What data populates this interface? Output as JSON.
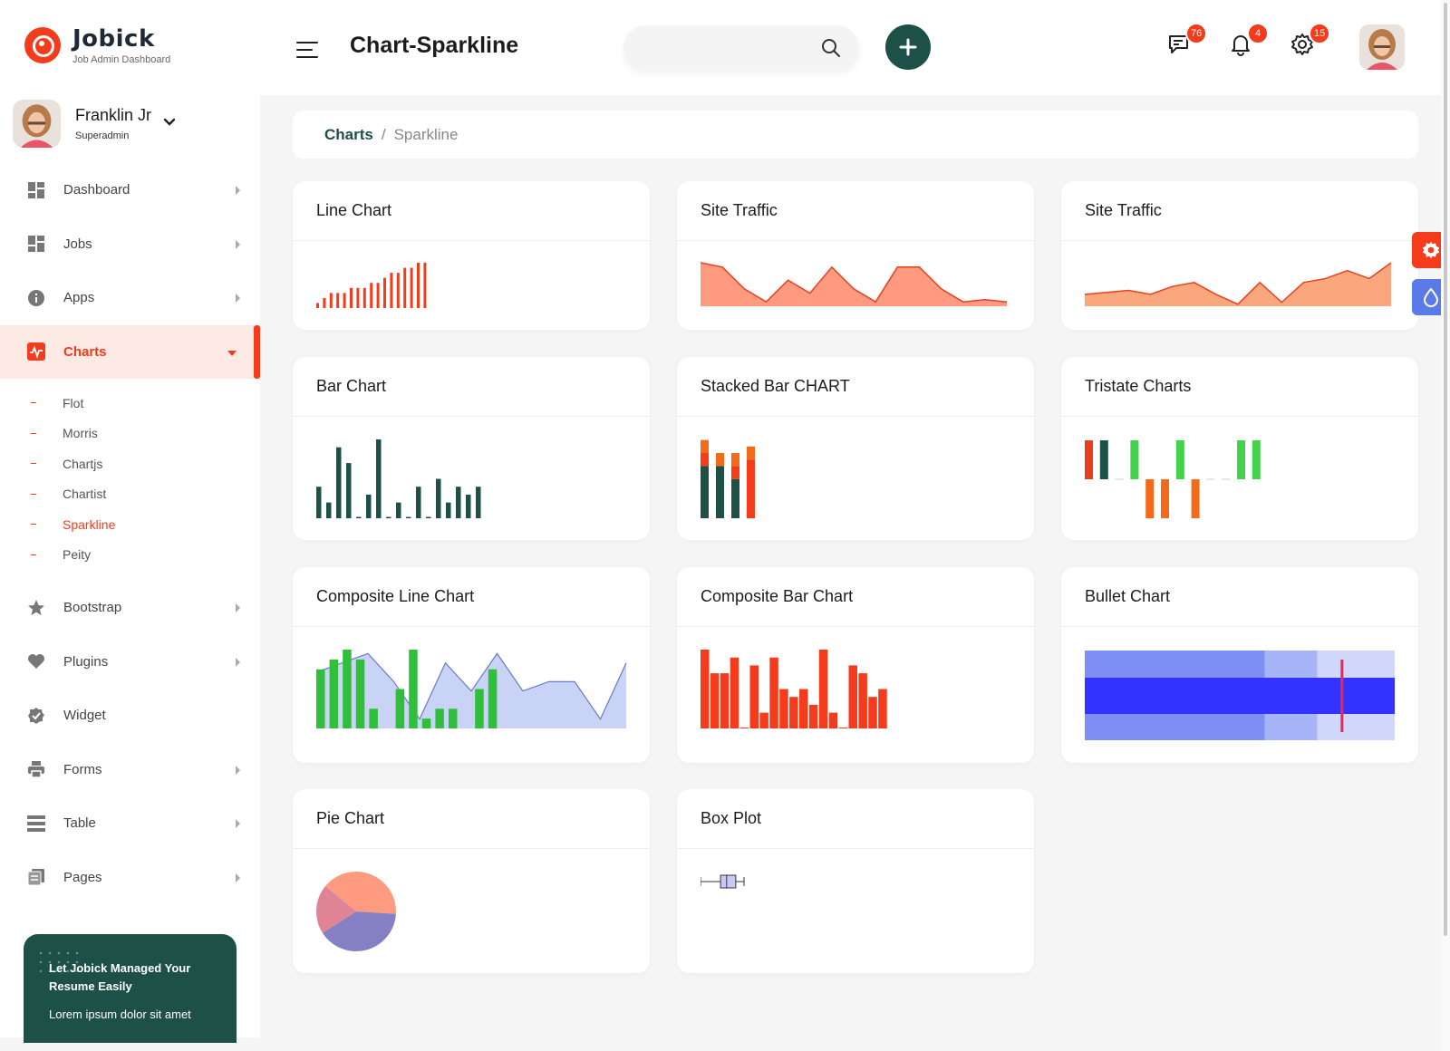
{
  "brand": {
    "name": "Jobick",
    "subtitle": "Job Admin Dashboard"
  },
  "header": {
    "title": "Chart-Sparkline",
    "search_placeholder": "",
    "badges": {
      "messages": "76",
      "notifications": "4",
      "settings": "15"
    }
  },
  "profile": {
    "name": "Franklin Jr",
    "role": "Superadmin"
  },
  "sidebar": {
    "items": [
      {
        "label": "Dashboard",
        "icon": "grid-icon"
      },
      {
        "label": "Jobs",
        "icon": "grid-icon"
      },
      {
        "label": "Apps",
        "icon": "info-icon"
      },
      {
        "label": "Charts",
        "icon": "pulse-chart-icon"
      },
      {
        "label": "Bootstrap",
        "icon": "star-icon"
      },
      {
        "label": "Plugins",
        "icon": "heart-icon"
      },
      {
        "label": "Widget",
        "icon": "badge-check-icon"
      },
      {
        "label": "Forms",
        "icon": "printer-icon"
      },
      {
        "label": "Table",
        "icon": "table-icon"
      },
      {
        "label": "Pages",
        "icon": "pages-icon"
      }
    ],
    "charts_submenu": [
      "Flot",
      "Morris",
      "Chartjs",
      "Chartist",
      "Sparkline",
      "Peity"
    ],
    "active_sub": "Sparkline"
  },
  "promo": {
    "title": "Let Jobick Managed Your Resume Easily",
    "subtitle": "Lorem ipsum dolor sit amet"
  },
  "breadcrumb": {
    "first": "Charts",
    "separator": "/",
    "last": "Sparkline"
  },
  "cards": {
    "line_chart": "Line Chart",
    "site_traffic_1": "Site Traffic",
    "site_traffic_2": "Site Traffic",
    "bar_chart": "Bar Chart",
    "stacked_bar": "Stacked Bar CHART",
    "tristate": "Tristate Charts",
    "composite_line": "Composite Line Chart",
    "composite_bar": "Composite Bar Chart",
    "bullet": "Bullet Chart",
    "pie": "Pie Chart",
    "box_plot": "Box Plot"
  },
  "colors": {
    "accent": "#f43b1b",
    "brand_green": "#1d5047",
    "traffic_fill": "#fd9a80",
    "composite_green": "#2fbf3b",
    "composite_area": "#c9d3f5",
    "bullet_dark": "#3333ff",
    "bullet_range": "#7b8ff5",
    "bullet_target": "#e52b50",
    "pie_1": "#fd9a80",
    "pie_2": "#8580c4",
    "pie_3": "#df8494",
    "tristate_pos": "#e8401e",
    "tristate_green": "#44d24a",
    "tristate_neg": "#f26b1a"
  },
  "chart_data": [
    {
      "id": "line_chart",
      "type": "bar",
      "values": [
        1,
        2,
        3,
        3,
        3,
        4,
        4,
        4,
        5,
        5,
        6,
        7,
        7,
        8,
        8,
        9,
        9
      ]
    },
    {
      "id": "site_traffic_1",
      "type": "area",
      "values": [
        10,
        9,
        4,
        1,
        6,
        3,
        9,
        4,
        1,
        9,
        9,
        4,
        1,
        1.5,
        1
      ]
    },
    {
      "id": "site_traffic_2",
      "type": "area",
      "values": [
        3,
        3.5,
        4,
        3,
        5,
        6,
        3,
        0.5,
        6,
        1,
        6,
        7,
        9,
        7,
        11
      ]
    },
    {
      "id": "bar_chart",
      "type": "bar",
      "values": [
        4,
        2,
        9,
        7,
        0,
        3,
        10,
        0,
        2,
        0,
        4,
        0,
        5,
        2,
        4,
        3,
        4
      ]
    },
    {
      "id": "stacked_bar",
      "type": "bar",
      "series": [
        {
          "values": [
            8,
            8,
            6,
            0
          ]
        },
        {
          "values": [
            2,
            0,
            2,
            9
          ]
        },
        {
          "values": [
            2,
            2,
            2,
            2
          ]
        }
      ]
    },
    {
      "id": "tristate",
      "type": "bar",
      "values": [
        1,
        1,
        0,
        1,
        -1,
        -1,
        1,
        -1,
        0,
        0,
        1,
        1
      ]
    },
    {
      "id": "composite_line",
      "type": "bar",
      "series": [
        {
          "kind": "bar",
          "values": [
            6,
            7,
            8,
            7,
            2,
            0,
            4,
            8,
            1,
            2,
            2,
            0,
            4,
            6
          ]
        },
        {
          "kind": "area",
          "values": [
            6,
            7,
            8,
            5,
            1,
            7,
            4,
            8,
            4,
            5,
            5,
            1,
            7
          ]
        }
      ]
    },
    {
      "id": "composite_bar",
      "type": "bar",
      "values": [
        10,
        7,
        7,
        9,
        0,
        8,
        2,
        9,
        5,
        4,
        5,
        3,
        10,
        2,
        0,
        8,
        7,
        4,
        5
      ]
    },
    {
      "id": "bullet",
      "type": "bar",
      "ranges": [
        100,
        75,
        58
      ],
      "performance": 100,
      "target": 83
    },
    {
      "id": "pie",
      "type": "pie",
      "values": [
        40,
        40,
        20
      ]
    },
    {
      "id": "box_plot",
      "type": "box",
      "min": 0,
      "q1": 46,
      "median": 60,
      "q3": 81,
      "max": 100
    }
  ]
}
